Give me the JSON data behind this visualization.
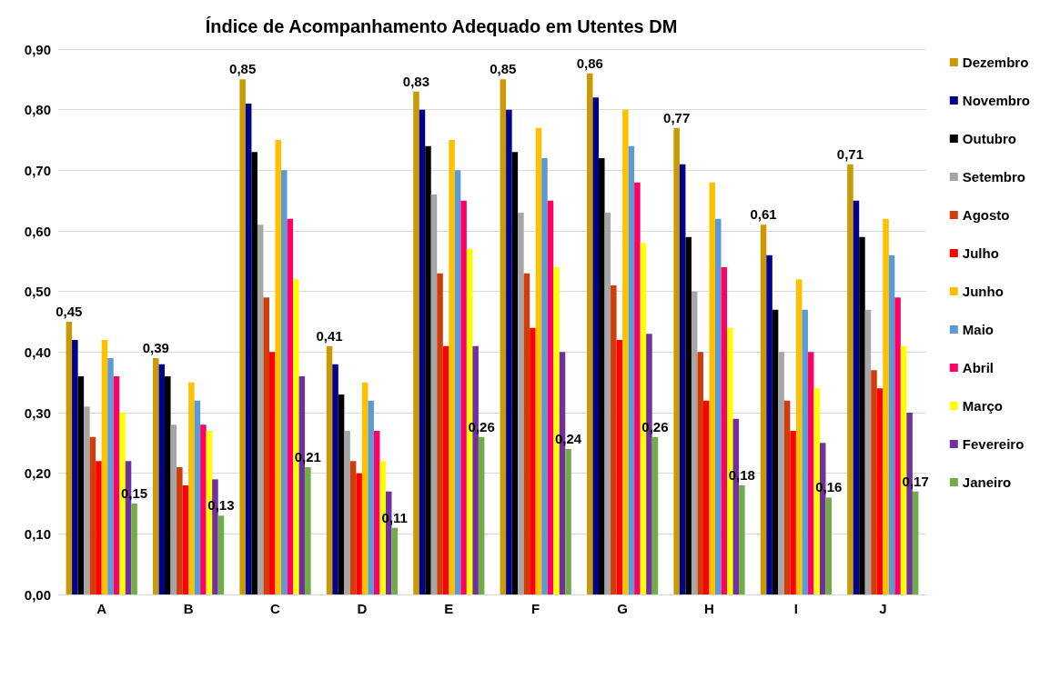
{
  "chart_data": {
    "type": "bar",
    "title": "Índice de Acompanhamento Adequado em Utentes DM",
    "categories": [
      "A",
      "B",
      "C",
      "D",
      "E",
      "F",
      "G",
      "H",
      "I",
      "J"
    ],
    "series": [
      {
        "name": "Dezembro",
        "color": "#c99a06",
        "values": [
          0.45,
          0.39,
          0.85,
          0.41,
          0.83,
          0.85,
          0.86,
          0.77,
          0.61,
          0.71
        ],
        "value_labels": [
          "0,45",
          "0,39",
          "0,85",
          "0,41",
          "0,83",
          "0,85",
          "0,86",
          "0,77",
          "0,61",
          "0,71"
        ]
      },
      {
        "name": "Novembro",
        "color": "#00008b",
        "values": [
          0.42,
          0.38,
          0.81,
          0.38,
          0.8,
          0.8,
          0.82,
          0.71,
          0.56,
          0.65
        ]
      },
      {
        "name": "Outubro",
        "color": "#000000",
        "values": [
          0.36,
          0.36,
          0.73,
          0.33,
          0.74,
          0.73,
          0.72,
          0.59,
          0.47,
          0.59
        ]
      },
      {
        "name": "Setembro",
        "color": "#a6a6a6",
        "values": [
          0.31,
          0.28,
          0.61,
          0.27,
          0.66,
          0.63,
          0.63,
          0.5,
          0.4,
          0.47
        ]
      },
      {
        "name": "Agosto",
        "color": "#d03c0a",
        "values": [
          0.26,
          0.21,
          0.49,
          0.22,
          0.53,
          0.53,
          0.51,
          0.4,
          0.32,
          0.37
        ]
      },
      {
        "name": "Julho",
        "color": "#ff0000",
        "values": [
          0.22,
          0.18,
          0.4,
          0.2,
          0.41,
          0.44,
          0.42,
          0.32,
          0.27,
          0.34
        ]
      },
      {
        "name": "Junho",
        "color": "#ffc000",
        "values": [
          0.42,
          0.35,
          0.75,
          0.35,
          0.75,
          0.77,
          0.8,
          0.68,
          0.52,
          0.62
        ]
      },
      {
        "name": "Maio",
        "color": "#5b9bd5",
        "values": [
          0.39,
          0.32,
          0.7,
          0.32,
          0.7,
          0.72,
          0.74,
          0.62,
          0.47,
          0.56
        ]
      },
      {
        "name": "Abril",
        "color": "#ff0066",
        "values": [
          0.36,
          0.28,
          0.62,
          0.27,
          0.65,
          0.65,
          0.68,
          0.54,
          0.4,
          0.49
        ]
      },
      {
        "name": "Março",
        "color": "#ffff00",
        "values": [
          0.3,
          0.27,
          0.52,
          0.22,
          0.57,
          0.54,
          0.58,
          0.44,
          0.34,
          0.41
        ]
      },
      {
        "name": "Fevereiro",
        "color": "#7030a0",
        "values": [
          0.22,
          0.19,
          0.36,
          0.17,
          0.41,
          0.4,
          0.43,
          0.29,
          0.25,
          0.3
        ]
      },
      {
        "name": "Janeiro",
        "color": "#70ad47",
        "values": [
          0.15,
          0.13,
          0.21,
          0.11,
          0.26,
          0.24,
          0.26,
          0.18,
          0.16,
          0.17
        ],
        "value_labels": [
          "0,15",
          "0,13",
          "0,21",
          "0,11",
          "0,26",
          "0,24",
          "0,26",
          "0,18",
          "0,16",
          "0,17"
        ]
      }
    ],
    "ylim": [
      0,
      0.9
    ],
    "yticks": [
      {
        "value": 0,
        "label": "0,00"
      },
      {
        "value": 0.1,
        "label": "0,10"
      },
      {
        "value": 0.2,
        "label": "0,20"
      },
      {
        "value": 0.3,
        "label": "0,30"
      },
      {
        "value": 0.4,
        "label": "0,40"
      },
      {
        "value": 0.5,
        "label": "0,50"
      },
      {
        "value": 0.6,
        "label": "0,60"
      },
      {
        "value": 0.7,
        "label": "0,70"
      },
      {
        "value": 0.8,
        "label": "0,80"
      },
      {
        "value": 0.9,
        "label": "0,90"
      }
    ],
    "grid": "y",
    "legend": "right"
  }
}
